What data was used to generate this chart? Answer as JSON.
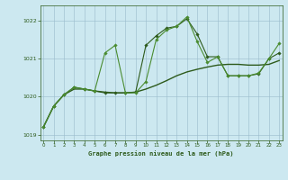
{
  "title": "Graphe pression niveau de la mer (hPa)",
  "background_color": "#cce8f0",
  "grid_color": "#99bbcc",
  "line_color_dark": "#2d5a1b",
  "line_color_mid": "#3a7a22",
  "line_color_light": "#4a8c30",
  "xlim": [
    -0.3,
    23.3
  ],
  "ylim": [
    1018.85,
    1022.4
  ],
  "yticks": [
    1019,
    1020,
    1021,
    1022
  ],
  "xticks": [
    0,
    1,
    2,
    3,
    4,
    5,
    6,
    7,
    8,
    9,
    10,
    11,
    12,
    13,
    14,
    15,
    16,
    17,
    18,
    19,
    20,
    21,
    22,
    23
  ],
  "series_smooth": [
    1019.2,
    1019.75,
    1020.05,
    1020.2,
    1020.2,
    1020.15,
    1020.12,
    1020.1,
    1020.1,
    1020.12,
    1020.2,
    1020.3,
    1020.42,
    1020.55,
    1020.65,
    1020.72,
    1020.78,
    1020.83,
    1020.85,
    1020.85,
    1020.83,
    1020.83,
    1020.85,
    1020.95
  ],
  "series_spiky": [
    1019.2,
    1019.75,
    1020.05,
    1020.25,
    1020.2,
    1020.15,
    1021.15,
    1021.35,
    1020.1,
    1020.1,
    1020.4,
    1021.5,
    1021.75,
    1021.85,
    1022.1,
    1021.45,
    1020.9,
    1021.05,
    1020.55,
    1020.55,
    1020.55,
    1020.62,
    1021.0,
    1021.4
  ],
  "series_mid": [
    1019.2,
    1019.75,
    1020.05,
    1020.25,
    1020.2,
    1020.15,
    1020.1,
    1020.1,
    1020.1,
    1020.12,
    1021.35,
    1021.6,
    1021.8,
    1021.85,
    1022.05,
    1021.65,
    1021.05,
    1021.05,
    1020.55,
    1020.55,
    1020.55,
    1020.6,
    1021.0,
    1021.15
  ]
}
